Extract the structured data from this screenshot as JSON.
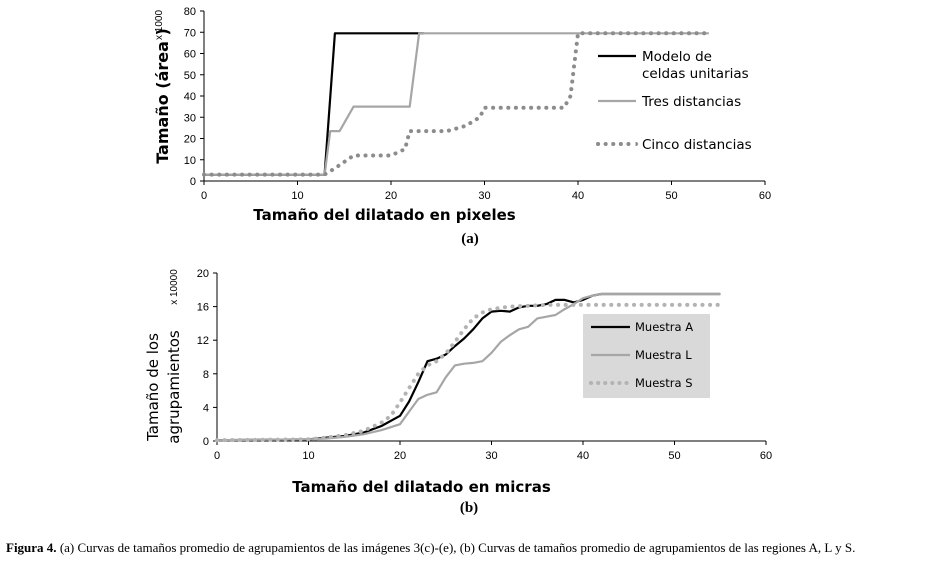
{
  "chart_data": [
    {
      "type": "line",
      "panel_label": "(a)",
      "xlabel": "Tamaño del dilatado en pixeles",
      "ylabel": "Tamaño (área )",
      "y_multiplier": "x 1000",
      "xlim": [
        0,
        60
      ],
      "ylim": [
        0,
        80
      ],
      "xticks": [
        0,
        10,
        20,
        30,
        40,
        50,
        60
      ],
      "yticks": [
        0,
        10,
        20,
        30,
        40,
        50,
        60,
        70,
        80
      ],
      "grid": false,
      "legend_position": "right",
      "series": [
        {
          "name": "Modelo de celdas unitarias",
          "name_lines": [
            "Modelo de",
            "celdas unitarias"
          ],
          "color": "#000000",
          "style": "solid",
          "x": [
            0,
            12.9,
            14,
            23.5
          ],
          "y": [
            3,
            3,
            69.5,
            69.5
          ]
        },
        {
          "name": "Tres distancias",
          "name_lines": [
            "Tres distancias"
          ],
          "color": "#a6a6a6",
          "style": "solid",
          "x": [
            0,
            12.9,
            13.5,
            14.5,
            16,
            22,
            23,
            54
          ],
          "y": [
            3,
            3,
            23.5,
            23.5,
            35,
            35,
            69.5,
            69.5
          ]
        },
        {
          "name": "Cinco distancias",
          "name_lines": [
            "Cinco distancias"
          ],
          "color": "#8c8c8c",
          "style": "dotted",
          "x": [
            0,
            12.9,
            14,
            15,
            16,
            20,
            21.5,
            22,
            26,
            28,
            29.5,
            30,
            34,
            38.5,
            39.2,
            40,
            54
          ],
          "y": [
            3,
            3,
            6,
            9,
            12,
            12,
            15,
            23.5,
            23.5,
            26,
            30,
            34.5,
            34.5,
            34.5,
            40,
            69.5,
            69.5
          ]
        }
      ]
    },
    {
      "type": "line",
      "panel_label": "(b)",
      "xlabel": "Tamaño del dilatado en micras",
      "ylabel_lines": [
        "Tamaño de los",
        "agrupamientos"
      ],
      "y_multiplier": "x 10000",
      "xlim": [
        0,
        60
      ],
      "ylim": [
        0,
        20
      ],
      "xticks": [
        0,
        10,
        20,
        30,
        40,
        50,
        60
      ],
      "yticks": [
        0,
        4,
        8,
        12,
        16,
        20
      ],
      "grid": false,
      "legend_position": "center-right",
      "legend_background": "#d9d9d9",
      "series": [
        {
          "name": "Muestra A",
          "color": "#000000",
          "style": "solid",
          "x": [
            0,
            10,
            12,
            14,
            16,
            18,
            20,
            21,
            22,
            23,
            24,
            25,
            26,
            27,
            28,
            29,
            30,
            31,
            32,
            33,
            34,
            35,
            36,
            37,
            38,
            39,
            40,
            41,
            42,
            55
          ],
          "y": [
            0.1,
            0.2,
            0.4,
            0.6,
            1.0,
            1.8,
            3.0,
            4.7,
            7.0,
            9.5,
            9.8,
            10.3,
            11.3,
            12.2,
            13.3,
            14.6,
            15.4,
            15.5,
            15.4,
            15.9,
            16.1,
            16.1,
            16.3,
            16.8,
            16.8,
            16.5,
            16.8,
            17.3,
            17.5,
            17.5
          ]
        },
        {
          "name": "Muestra L",
          "color": "#a6a6a6",
          "style": "solid",
          "x": [
            0,
            10,
            12,
            14,
            16,
            18,
            20,
            21,
            22,
            23,
            24,
            25,
            26,
            27,
            28,
            29,
            30,
            31,
            32,
            33,
            34,
            35,
            36,
            37,
            38,
            39,
            40,
            41,
            42,
            55
          ],
          "y": [
            0.1,
            0.2,
            0.3,
            0.5,
            0.8,
            1.3,
            2.0,
            3.5,
            5.0,
            5.5,
            5.8,
            7.6,
            9.0,
            9.2,
            9.3,
            9.5,
            10.5,
            11.8,
            12.6,
            13.3,
            13.6,
            14.6,
            14.8,
            15.0,
            15.7,
            16.3,
            17.0,
            17.3,
            17.5,
            17.5
          ]
        },
        {
          "name": "Muestra S",
          "color": "#b3b3b3",
          "style": "dotted",
          "x": [
            0,
            10,
            12,
            14,
            16,
            18,
            19,
            20,
            21,
            22,
            23,
            24,
            25,
            26,
            27,
            28,
            29,
            30,
            32,
            34,
            36,
            38,
            40,
            42,
            55
          ],
          "y": [
            0.1,
            0.2,
            0.4,
            0.7,
            1.2,
            2.2,
            3.0,
            4.6,
            6.3,
            8.0,
            9.0,
            9.5,
            10.4,
            11.8,
            13.3,
            14.6,
            15.3,
            15.7,
            16.0,
            16.1,
            16.2,
            16.2,
            16.2,
            16.2,
            16.2
          ]
        }
      ]
    }
  ],
  "caption": {
    "label": "Figura 4.",
    "text": " (a) Curvas de tamaños promedio de agrupamientos de las imágenes 3(c)-(e), (b) Curvas de tamaños promedio de agrupamientos de las regiones A, L y S."
  }
}
